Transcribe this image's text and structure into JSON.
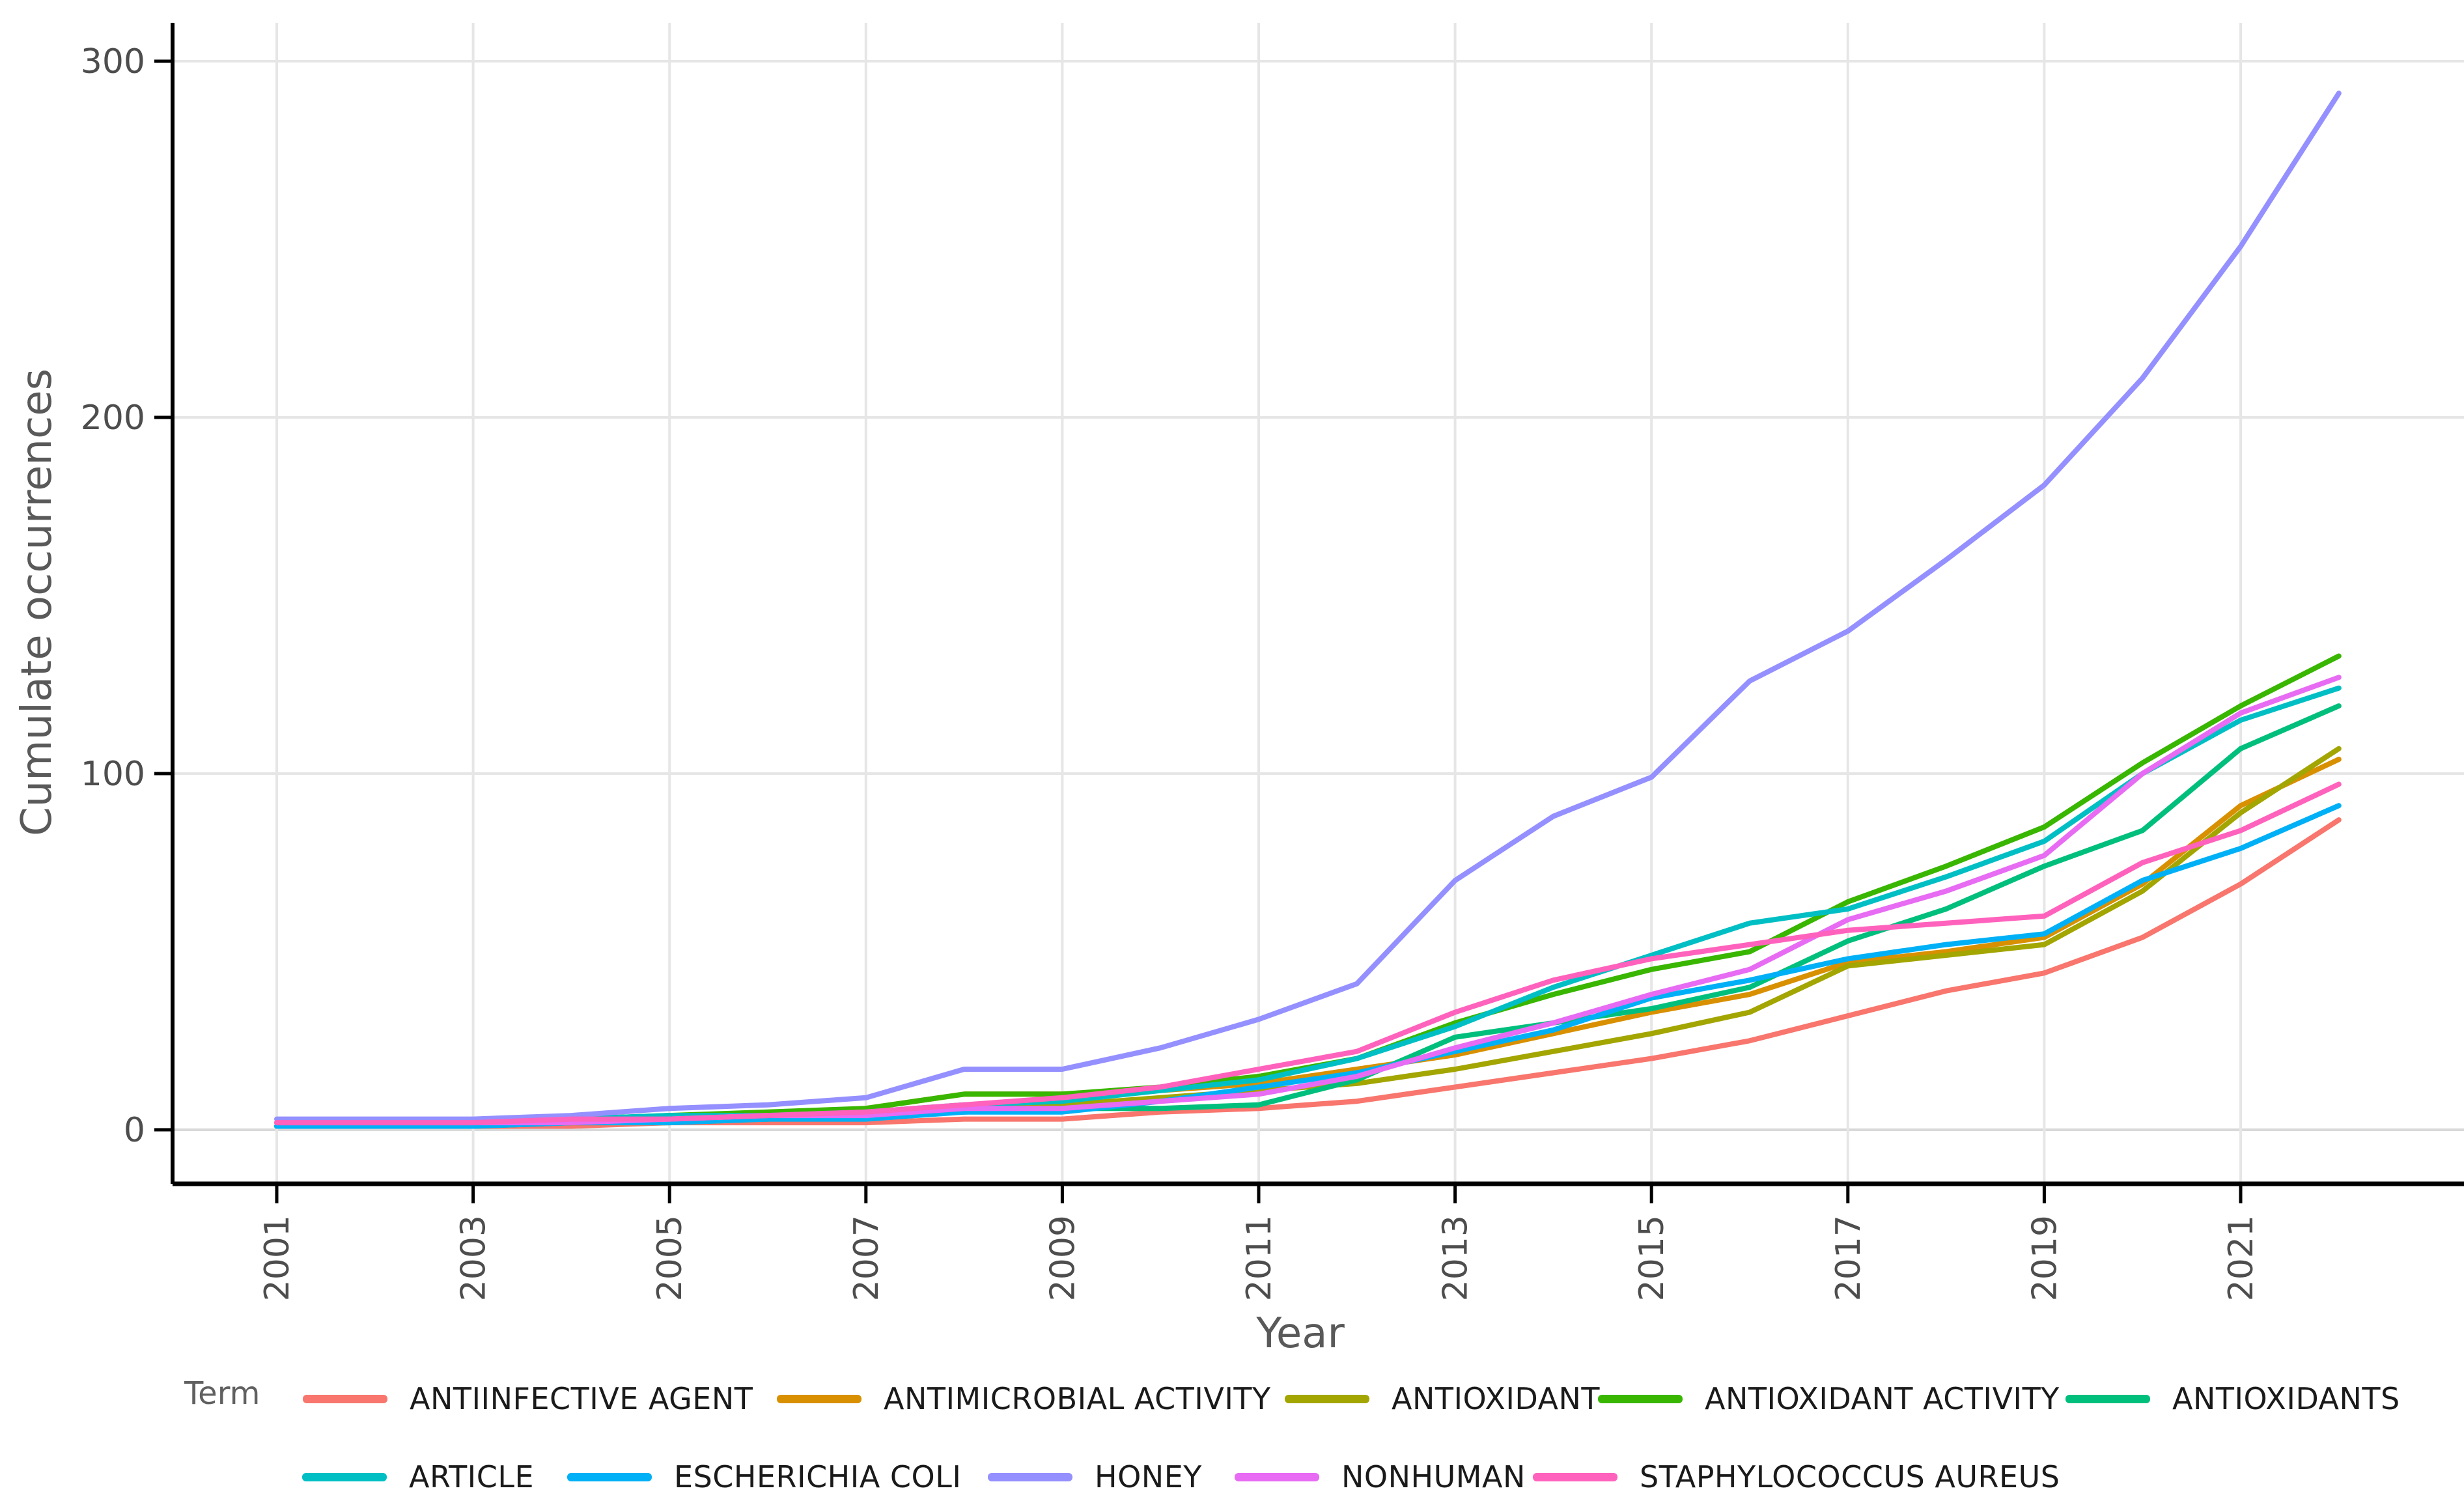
{
  "chart_data": {
    "type": "line",
    "title": "",
    "xlabel": "Year",
    "ylabel": "Cumulate occurrences",
    "legend_title": "Term",
    "legend_position": "bottom",
    "grid": "major horizontal and vertical gridlines, light gray on white; black left and bottom axis lines with outward ticks",
    "x": [
      2001,
      2002,
      2003,
      2004,
      2005,
      2006,
      2007,
      2008,
      2009,
      2010,
      2011,
      2012,
      2013,
      2014,
      2015,
      2016,
      2017,
      2018,
      2019,
      2020,
      2021,
      2022
    ],
    "x_tick_labels": [
      "2001",
      "2003",
      "2005",
      "2007",
      "2009",
      "2011",
      "2013",
      "2015",
      "2017",
      "2019",
      "2021"
    ],
    "x_tick_years": [
      2001,
      2003,
      2005,
      2007,
      2009,
      2011,
      2013,
      2015,
      2017,
      2019,
      2021
    ],
    "y_ticks": [
      0,
      100,
      200,
      300
    ],
    "y_tick_labels": [
      "0",
      "100",
      "200",
      "300"
    ],
    "ylim": [
      0,
      300
    ],
    "series": [
      {
        "name": "ANTIINFECTIVE AGENT",
        "color": "#F8766D",
        "values": [
          1,
          1,
          1,
          1,
          2,
          2,
          2,
          3,
          3,
          5,
          6,
          8,
          12,
          16,
          20,
          25,
          32,
          39,
          44,
          54,
          69,
          87
        ]
      },
      {
        "name": "ANTIMICROBIAL ACTIVITY",
        "color": "#D89000",
        "values": [
          1,
          1,
          2,
          2,
          3,
          4,
          6,
          10,
          10,
          11,
          13,
          17,
          21,
          27,
          33,
          38,
          47,
          50,
          54,
          69,
          91,
          104
        ]
      },
      {
        "name": "ANTIOXIDANT",
        "color": "#A3A500",
        "values": [
          1,
          1,
          1,
          2,
          2,
          3,
          4,
          6,
          7,
          9,
          11,
          13,
          17,
          22,
          27,
          33,
          46,
          49,
          52,
          67,
          89,
          107
        ]
      },
      {
        "name": "ANTIOXIDANT ACTIVITY",
        "color": "#39B600",
        "values": [
          1,
          2,
          2,
          3,
          4,
          5,
          6,
          10,
          10,
          12,
          15,
          20,
          30,
          38,
          45,
          50,
          64,
          74,
          85,
          103,
          119,
          133
        ]
      },
      {
        "name": "ANTIOXIDANTS",
        "color": "#00BF7D",
        "values": [
          1,
          1,
          1,
          2,
          3,
          3,
          4,
          5,
          6,
          6,
          7,
          14,
          26,
          30,
          34,
          40,
          53,
          62,
          74,
          84,
          107,
          119
        ]
      },
      {
        "name": "ARTICLE",
        "color": "#00BFC4",
        "values": [
          2,
          2,
          2,
          3,
          4,
          4,
          5,
          7,
          8,
          11,
          14,
          20,
          29,
          40,
          49,
          58,
          62,
          71,
          81,
          100,
          115,
          124
        ]
      },
      {
        "name": "ESCHERICHIA COLI",
        "color": "#00B0F6",
        "values": [
          1,
          1,
          1,
          2,
          2,
          3,
          3,
          5,
          5,
          8,
          12,
          16,
          22,
          28,
          37,
          42,
          48,
          52,
          55,
          70,
          79,
          91
        ]
      },
      {
        "name": "HONEY",
        "color": "#9590FF",
        "values": [
          3,
          3,
          3,
          4,
          6,
          7,
          9,
          17,
          17,
          23,
          31,
          41,
          70,
          88,
          99,
          126,
          140,
          160,
          181,
          211,
          248,
          291
        ]
      },
      {
        "name": "NONHUMAN",
        "color": "#E76BF3",
        "values": [
          2,
          2,
          2,
          2,
          3,
          4,
          4,
          6,
          6,
          8,
          10,
          15,
          23,
          30,
          38,
          45,
          59,
          67,
          77,
          100,
          117,
          127
        ]
      },
      {
        "name": "STAPHYLOCOCCUS AUREUS",
        "color": "#FF62BC",
        "values": [
          2,
          2,
          2,
          3,
          3,
          4,
          5,
          7,
          9,
          12,
          17,
          22,
          33,
          42,
          48,
          52,
          56,
          58,
          60,
          75,
          84,
          97
        ]
      }
    ]
  },
  "legend": {
    "title": "Term"
  },
  "colors": {
    "axis_line": "#000000",
    "tick_text": "#4d4d4d",
    "axis_title_text": "#595959",
    "gridline": "#e6e6e6",
    "zero_gridline": "#d9d9d9",
    "background": "#ffffff"
  }
}
